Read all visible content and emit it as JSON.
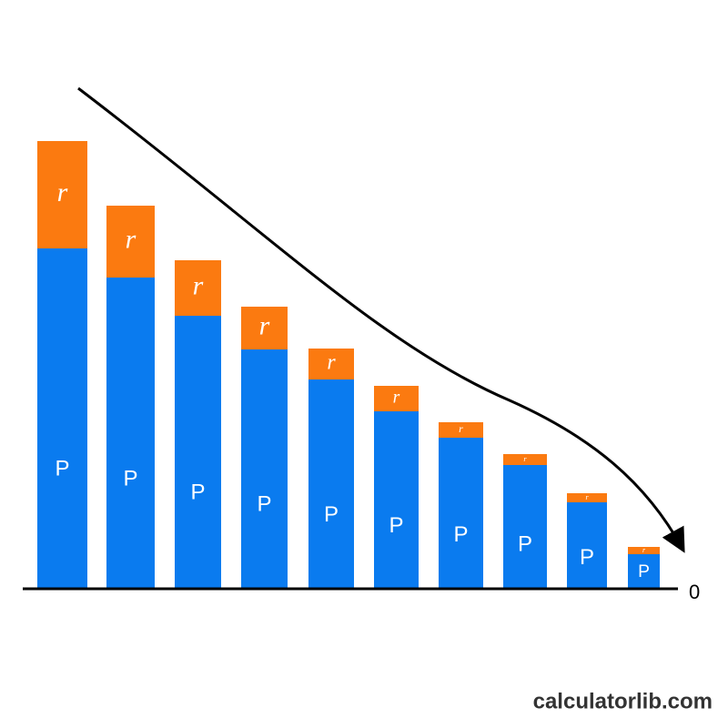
{
  "chart_data": {
    "type": "stacked_bar",
    "categories": [
      null,
      null,
      null,
      null,
      null,
      null,
      null,
      null,
      null,
      null
    ],
    "series": [
      {
        "name": "P",
        "color": "#0a7bef",
        "values": [
          374,
          342,
          300,
          263,
          230,
          195,
          166,
          136,
          95,
          38
        ]
      },
      {
        "name": "r",
        "color": "#fb7a10",
        "values": [
          118,
          79,
          61,
          47,
          34,
          28,
          17,
          12,
          10,
          8
        ]
      }
    ],
    "ylim": [
      0,
      500
    ],
    "yticks": [
      0
    ],
    "source": "calculatorlib.com"
  }
}
